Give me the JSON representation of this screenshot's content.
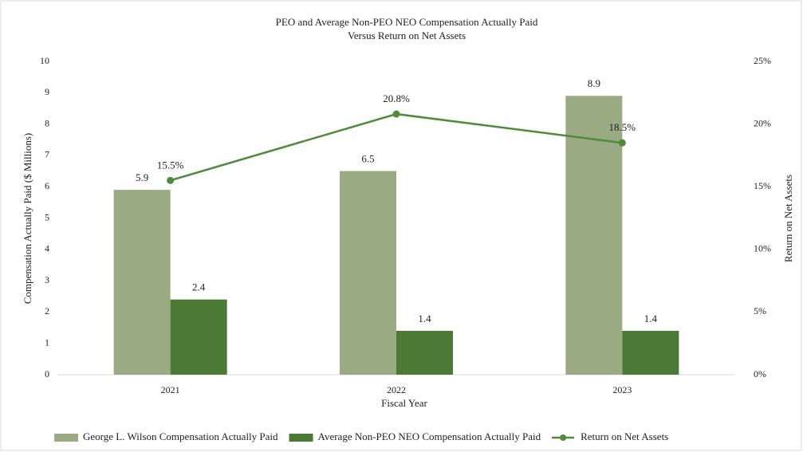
{
  "chart_data": {
    "type": "bar",
    "title": [
      "PEO and Average Non-PEO NEO Compensation Actually Paid",
      "Versus Return on Net Assets"
    ],
    "xlabel": "Fiscal Year",
    "ylabel": "Compensation Actually Paid ($ Millions)",
    "y2label": "Return on Net Assets",
    "categories": [
      "2021",
      "2022",
      "2023"
    ],
    "series": [
      {
        "name": "George L. Wilson Compensation Actually Paid",
        "type": "bar",
        "color": "#9aab84",
        "values": [
          5.9,
          6.5,
          8.9
        ]
      },
      {
        "name": "Average Non-PEO NEO Compensation Actually Paid",
        "type": "bar",
        "color": "#4a7a35",
        "values": [
          2.4,
          1.4,
          1.4
        ]
      },
      {
        "name": "Return on Net Assets",
        "type": "line",
        "axis": "y2",
        "color": "#4e8a3a",
        "values": [
          15.5,
          20.8,
          18.5
        ],
        "value_labels": [
          "15.5%",
          "20.8%",
          "18.5%"
        ]
      }
    ],
    "ylim": [
      0,
      10
    ],
    "yticks": [
      0,
      1,
      2,
      3,
      4,
      5,
      6,
      7,
      8,
      9,
      10
    ],
    "y2lim": [
      0,
      25
    ],
    "y2ticks": [
      {
        "value": 0,
        "label": "0%"
      },
      {
        "value": 5,
        "label": "5%"
      },
      {
        "value": 10,
        "label": "10%"
      },
      {
        "value": 15,
        "label": "15%"
      },
      {
        "value": 20,
        "label": "20%"
      },
      {
        "value": 25,
        "label": "25%"
      }
    ],
    "legend": "bottom"
  }
}
